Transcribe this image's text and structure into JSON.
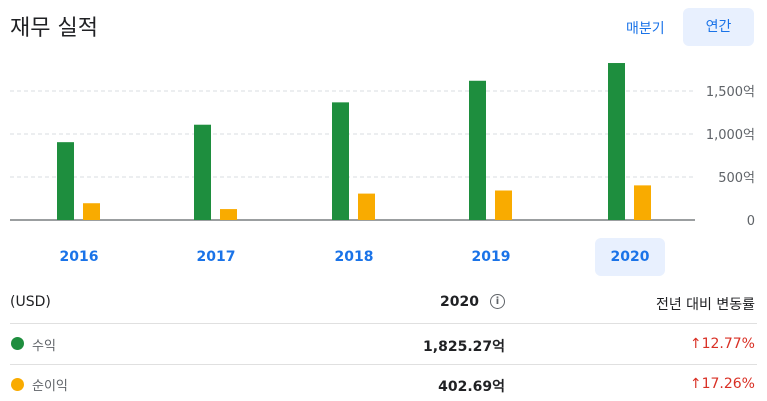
{
  "header": {
    "title": "재무 실적",
    "tab_quarterly": "매분기",
    "tab_annual": "연간"
  },
  "chart_data": {
    "type": "bar",
    "categories": [
      "2016",
      "2017",
      "2018",
      "2019",
      "2020"
    ],
    "series": [
      {
        "name": "수익",
        "values": [
          905,
          1108,
          1368,
          1619,
          1825.27
        ],
        "color": "#1e8e3e"
      },
      {
        "name": "순이익",
        "values": [
          195,
          127,
          307,
          343,
          402.69
        ],
        "color": "#f9ab00"
      }
    ],
    "ylim": [
      0,
      1900
    ],
    "y_ticks": [
      {
        "value": 0,
        "label": "0"
      },
      {
        "value": 500,
        "label": "500억"
      },
      {
        "value": 1000,
        "label": "1,000억"
      },
      {
        "value": 1500,
        "label": "1,500억"
      }
    ],
    "selected_year": "2020"
  },
  "table": {
    "currency": "(USD)",
    "year": "2020",
    "info_icon": "i",
    "change_header": "전년 대비 변동률",
    "rows": [
      {
        "label": "수익",
        "value": "1,825.27억",
        "change": "↑12.77%",
        "color": "#1e8e3e"
      },
      {
        "label": "순이익",
        "value": "402.69억",
        "change": "↑17.26%",
        "color": "#f9ab00"
      }
    ]
  }
}
